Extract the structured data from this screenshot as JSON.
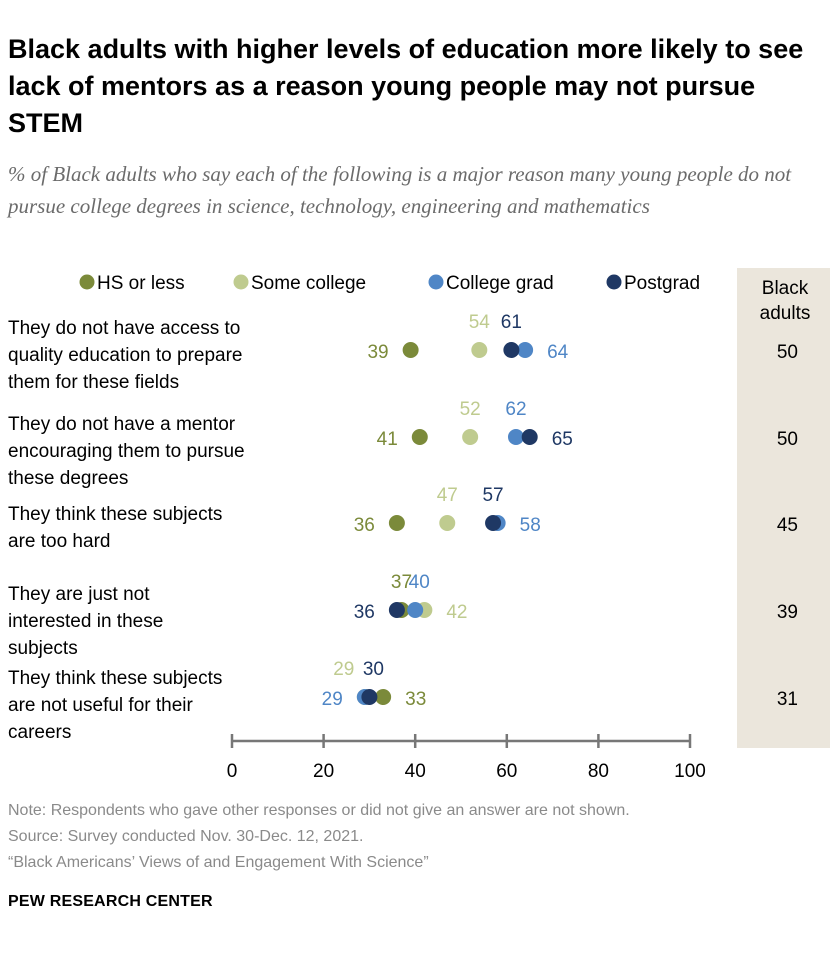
{
  "title": "Black adults with higher levels of education more likely to see lack of mentors as a reason young people may not pursue STEM",
  "subtitle": "% of Black adults who say each of the following is a major reason many young people do not pursue college degrees in science, technology, engineering and mathematics",
  "notes": {
    "note": "Note: Respondents who gave other responses or did not give an answer are not shown.",
    "source": "Source: Survey conducted Nov. 30-Dec. 12, 2021.",
    "report": "“Black Americans’ Views of and Engagement With Science”"
  },
  "brand": "PEW RESEARCH CENTER",
  "chart_data": {
    "type": "scatter",
    "title": "Black adults with higher levels of education more likely to see lack of mentors as a reason young people may not pursue STEM",
    "xlim": [
      0,
      100
    ],
    "x_ticks": [
      0,
      20,
      40,
      60,
      80,
      100
    ],
    "grid": false,
    "legend_position": "top",
    "categories": [
      "They do not have access to quality education to prepare them for these fields",
      "They do not have a mentor encouraging them to pursue these degrees",
      "They think these subjects are too hard",
      "They are just not interested in these subjects",
      "They think these subjects are not useful for their careers"
    ],
    "series": [
      {
        "name": "HS or less",
        "color": "#7b8a3a",
        "values": [
          39,
          41,
          36,
          37,
          33
        ]
      },
      {
        "name": "Some college",
        "color": "#bfcb8f",
        "values": [
          54,
          52,
          47,
          42,
          29
        ]
      },
      {
        "name": "College grad",
        "color": "#4f86c6",
        "values": [
          64,
          62,
          58,
          40,
          29
        ]
      },
      {
        "name": "Postgrad",
        "color": "#1f3864",
        "values": [
          61,
          65,
          57,
          36,
          30
        ]
      }
    ],
    "total": {
      "header": "Black adults",
      "values": [
        50,
        50,
        45,
        39,
        31
      ]
    }
  }
}
